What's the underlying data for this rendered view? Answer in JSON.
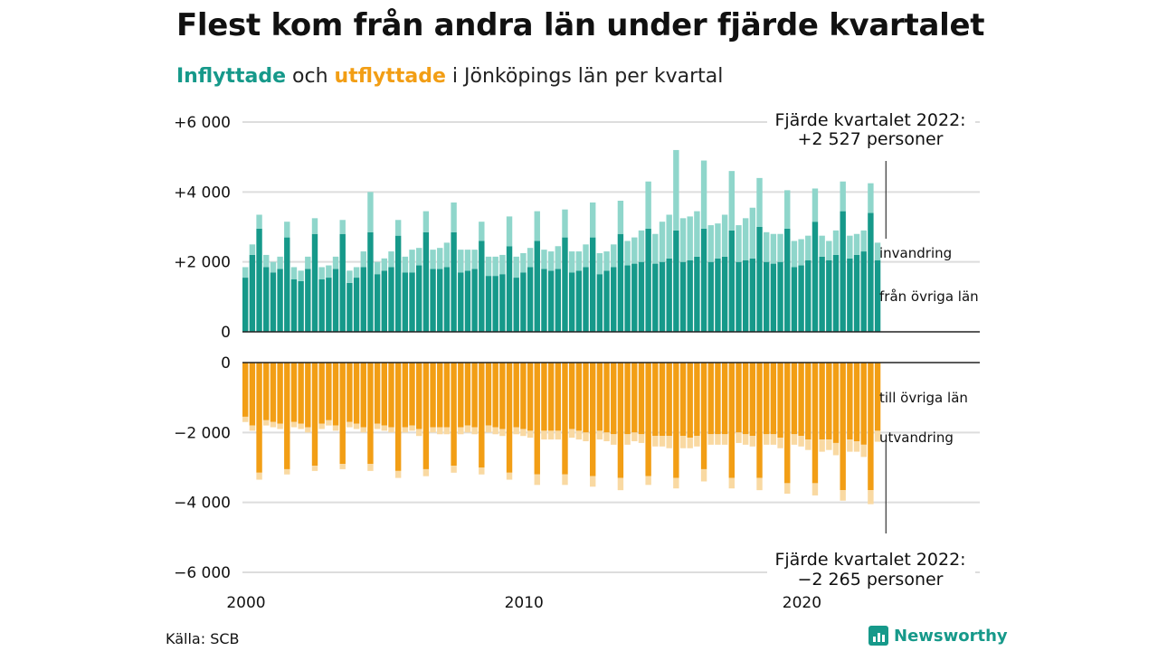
{
  "header": {
    "title": "Flest kom från andra län under fjärde kvartalet",
    "subtitle_in": "Inflyttade",
    "subtitle_mid": " och ",
    "subtitle_out": "utflyttade",
    "subtitle_rest": " i Jönköpings län per kvartal"
  },
  "footer": {
    "source": "Källa: SCB",
    "brand": "Newsworthy"
  },
  "colors": {
    "in_dark": "#16998a",
    "in_light": "#8fd6cb",
    "out_dark": "#f29e15",
    "out_light": "#f9d9a2",
    "grid": "#dddddd",
    "axis": "#222222"
  },
  "chart_data": {
    "type": "bar",
    "stacked": true,
    "grid": true,
    "x_ticks": [
      "2000",
      "2010",
      "2020"
    ],
    "x_tick_years": [
      2000,
      2010,
      2020
    ],
    "start_year": 2000,
    "quarters": [
      "2000 Q1",
      "2000 Q2",
      "2000 Q3",
      "2000 Q4",
      "2001 Q1",
      "2001 Q2",
      "2001 Q3",
      "2001 Q4",
      "2002 Q1",
      "2002 Q2",
      "2002 Q3",
      "2002 Q4",
      "2003 Q1",
      "2003 Q2",
      "2003 Q3",
      "2003 Q4",
      "2004 Q1",
      "2004 Q2",
      "2004 Q3",
      "2004 Q4",
      "2005 Q1",
      "2005 Q2",
      "2005 Q3",
      "2005 Q4",
      "2006 Q1",
      "2006 Q2",
      "2006 Q3",
      "2006 Q4",
      "2007 Q1",
      "2007 Q2",
      "2007 Q3",
      "2007 Q4",
      "2008 Q1",
      "2008 Q2",
      "2008 Q3",
      "2008 Q4",
      "2009 Q1",
      "2009 Q2",
      "2009 Q3",
      "2009 Q4",
      "2010 Q1",
      "2010 Q2",
      "2010 Q3",
      "2010 Q4",
      "2011 Q1",
      "2011 Q2",
      "2011 Q3",
      "2011 Q4",
      "2012 Q1",
      "2012 Q2",
      "2012 Q3",
      "2012 Q4",
      "2013 Q1",
      "2013 Q2",
      "2013 Q3",
      "2013 Q4",
      "2014 Q1",
      "2014 Q2",
      "2014 Q3",
      "2014 Q4",
      "2015 Q1",
      "2015 Q2",
      "2015 Q3",
      "2015 Q4",
      "2016 Q1",
      "2016 Q2",
      "2016 Q3",
      "2016 Q4",
      "2017 Q1",
      "2017 Q2",
      "2017 Q3",
      "2017 Q4",
      "2018 Q1",
      "2018 Q2",
      "2018 Q3",
      "2018 Q4",
      "2019 Q1",
      "2019 Q2",
      "2019 Q3",
      "2019 Q4",
      "2020 Q1",
      "2020 Q2",
      "2020 Q3",
      "2020 Q4",
      "2021 Q1",
      "2021 Q2",
      "2021 Q3",
      "2021 Q4",
      "2022 Q1",
      "2022 Q2",
      "2022 Q3",
      "2022 Q4"
    ],
    "top": {
      "yticks": [
        0,
        2000,
        4000,
        6000
      ],
      "ytick_labels": [
        "0",
        "+2 000",
        "+4 000",
        "+6 000"
      ],
      "ylim": [
        0,
        6000
      ],
      "series": [
        {
          "name": "från övriga län",
          "values": [
            1550,
            2200,
            2950,
            1850,
            1700,
            1800,
            2700,
            1500,
            1450,
            1800,
            2800,
            1500,
            1550,
            1800,
            2800,
            1400,
            1550,
            1850,
            2850,
            1650,
            1750,
            1850,
            2750,
            1700,
            1700,
            1900,
            2850,
            1800,
            1800,
            1850,
            2850,
            1700,
            1750,
            1800,
            2600,
            1600,
            1600,
            1650,
            2450,
            1550,
            1700,
            1850,
            2600,
            1800,
            1750,
            1800,
            2700,
            1700,
            1750,
            1850,
            2700,
            1650,
            1750,
            1850,
            2800,
            1900,
            1950,
            2000,
            2950,
            1950,
            2000,
            2100,
            2900,
            2000,
            2050,
            2150,
            2950,
            2000,
            2100,
            2150,
            2900,
            2000,
            2050,
            2100,
            3000,
            2000,
            1950,
            2000,
            2950,
            1850,
            1900,
            2050,
            3150,
            2150,
            2050,
            2200,
            3450,
            2100,
            2200,
            2300,
            3400,
            2050
          ]
        },
        {
          "name": "invandring",
          "values": [
            300,
            300,
            400,
            350,
            300,
            350,
            450,
            350,
            300,
            350,
            450,
            350,
            350,
            350,
            400,
            350,
            300,
            450,
            1150,
            350,
            350,
            450,
            450,
            450,
            650,
            500,
            600,
            550,
            600,
            700,
            850,
            650,
            600,
            550,
            550,
            550,
            550,
            550,
            850,
            600,
            550,
            550,
            850,
            550,
            550,
            650,
            800,
            600,
            550,
            650,
            1000,
            600,
            550,
            650,
            950,
            700,
            750,
            900,
            1350,
            850,
            1150,
            1250,
            2300,
            1250,
            1250,
            1300,
            1950,
            1050,
            1000,
            1200,
            1700,
            1050,
            1200,
            1450,
            1400,
            850,
            850,
            800,
            1100,
            750,
            750,
            700,
            950,
            600,
            550,
            700,
            850,
            650,
            600,
            600,
            850,
            500
          ]
        }
      ]
    },
    "bottom": {
      "yticks": [
        0,
        -2000,
        -4000,
        -6000
      ],
      "ytick_labels": [
        "0",
        "−2 000",
        "−4 000",
        "−6 000"
      ],
      "ylim": [
        -6000,
        0
      ],
      "series": [
        {
          "name": "till övriga län",
          "values": [
            -1550,
            -1800,
            -3150,
            -1650,
            -1700,
            -1750,
            -3050,
            -1700,
            -1750,
            -1850,
            -2950,
            -1750,
            -1650,
            -1800,
            -2900,
            -1700,
            -1750,
            -1850,
            -2900,
            -1750,
            -1800,
            -1850,
            -3100,
            -1850,
            -1800,
            -1900,
            -3050,
            -1850,
            -1850,
            -1850,
            -2950,
            -1850,
            -1800,
            -1850,
            -3000,
            -1800,
            -1850,
            -1900,
            -3150,
            -1850,
            -1900,
            -1950,
            -3200,
            -1950,
            -1950,
            -1950,
            -3200,
            -1900,
            -1950,
            -2000,
            -3250,
            -1950,
            -2000,
            -2050,
            -3300,
            -2050,
            -2000,
            -2050,
            -3250,
            -2100,
            -2100,
            -2100,
            -3300,
            -2100,
            -2150,
            -2100,
            -3050,
            -2050,
            -2050,
            -2050,
            -3300,
            -2000,
            -2050,
            -2100,
            -3300,
            -2050,
            -2050,
            -2150,
            -3450,
            -2050,
            -2100,
            -2200,
            -3450,
            -2200,
            -2200,
            -2300,
            -3650,
            -2200,
            -2250,
            -2350,
            -3650,
            -1950
          ]
        },
        {
          "name": "utvandring",
          "values": [
            -150,
            -150,
            -200,
            -150,
            -150,
            -150,
            -150,
            -150,
            -150,
            -150,
            -150,
            -150,
            -150,
            -150,
            -150,
            -150,
            -150,
            -150,
            -200,
            -150,
            -150,
            -150,
            -200,
            -150,
            -150,
            -200,
            -200,
            -150,
            -200,
            -200,
            -200,
            -200,
            -200,
            -200,
            -200,
            -200,
            -200,
            -200,
            -200,
            -200,
            -200,
            -200,
            -300,
            -250,
            -250,
            -250,
            -300,
            -250,
            -250,
            -250,
            -300,
            -250,
            -250,
            -300,
            -350,
            -300,
            -250,
            -250,
            -250,
            -300,
            -300,
            -350,
            -300,
            -350,
            -300,
            -300,
            -350,
            -300,
            -300,
            -300,
            -300,
            -300,
            -300,
            -300,
            -350,
            -300,
            -300,
            -300,
            -300,
            -300,
            -300,
            -300,
            -350,
            -350,
            -300,
            -350,
            -300,
            -350,
            -300,
            -350,
            -400,
            -315
          ]
        }
      ]
    },
    "annotation_top": {
      "line1": "Fjärde kvartalet 2022:",
      "line2": "+2 527 personer"
    },
    "annotation_bottom": {
      "line1": "Fjärde kvartalet 2022:",
      "line2": "−2 265 personer"
    }
  }
}
